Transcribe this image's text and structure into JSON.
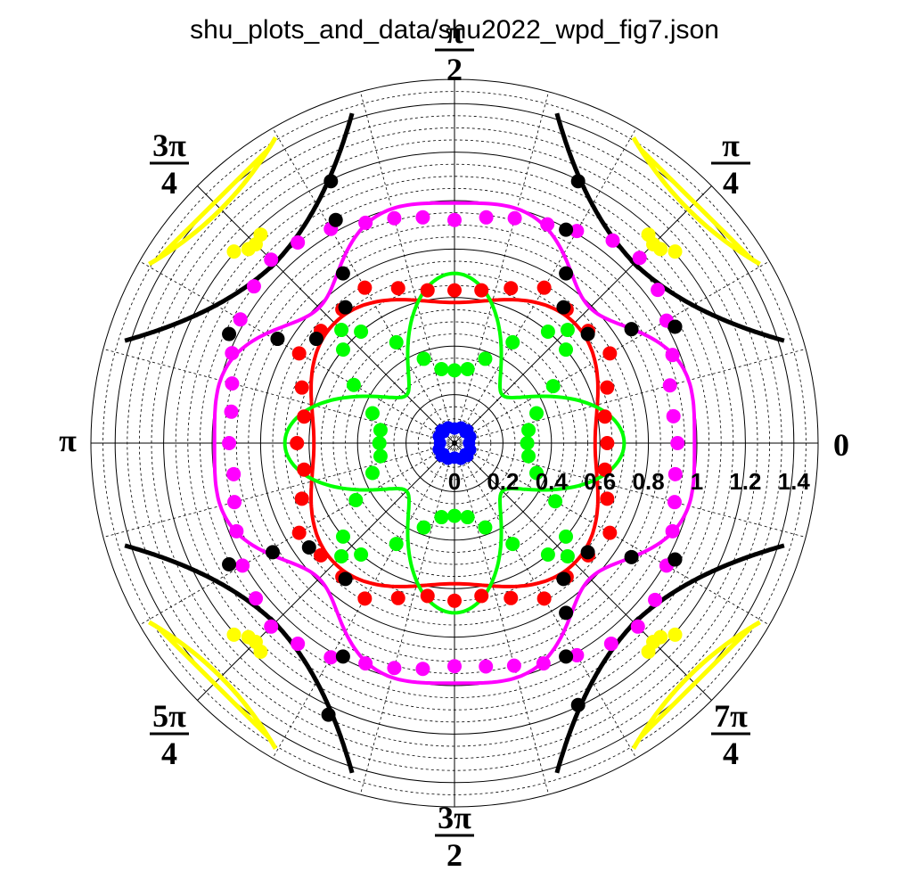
{
  "chart_data": {
    "type": "polar",
    "title": "shu_plots_and_data/shu2022_wpd_fig7.json",
    "r_range": [
      0,
      1.5
    ],
    "radial_ticks": [
      {
        "value": 0,
        "label": "0"
      },
      {
        "value": 0.2,
        "label": "0.2"
      },
      {
        "value": 0.4,
        "label": "0.4"
      },
      {
        "value": 0.6,
        "label": "0.6"
      },
      {
        "value": 0.8,
        "label": "0.8"
      },
      {
        "value": 1.0,
        "label": "1"
      },
      {
        "value": 1.2,
        "label": "1.2"
      },
      {
        "value": 1.4,
        "label": "1.4"
      }
    ],
    "angle_labels": [
      {
        "angle_deg": 0,
        "num": "0",
        "den": ""
      },
      {
        "angle_deg": 45,
        "num": "π",
        "den": "4"
      },
      {
        "angle_deg": 90,
        "num": "π",
        "den": "2"
      },
      {
        "angle_deg": 135,
        "num": "3π",
        "den": "4"
      },
      {
        "angle_deg": 180,
        "num": "π",
        "den": ""
      },
      {
        "angle_deg": 225,
        "num": "5π",
        "den": "4"
      },
      {
        "angle_deg": 270,
        "num": "3π",
        "den": "2"
      },
      {
        "angle_deg": 315,
        "num": "7π",
        "den": "4"
      }
    ],
    "grid": true,
    "series": [
      {
        "color": "#ff0000",
        "curve": {
          "form": "cos4",
          "a": 0.64,
          "b": -0.06
        },
        "points_polar": [
          [
            0,
            0.63
          ],
          [
            10,
            0.63
          ],
          [
            20,
            0.67
          ],
          [
            30,
            0.74
          ],
          [
            40,
            0.72
          ],
          [
            50,
            0.72
          ],
          [
            60,
            0.74
          ],
          [
            70,
            0.68
          ],
          [
            80,
            0.64
          ],
          [
            90,
            0.63
          ],
          [
            100,
            0.64
          ],
          [
            110,
            0.68
          ],
          [
            120,
            0.74
          ],
          [
            130,
            0.72
          ],
          [
            140,
            0.72
          ],
          [
            150,
            0.74
          ],
          [
            160,
            0.67
          ],
          [
            170,
            0.63
          ],
          [
            180,
            0.65
          ],
          [
            190,
            0.63
          ],
          [
            200,
            0.67
          ],
          [
            210,
            0.74
          ],
          [
            220,
            0.72
          ],
          [
            230,
            0.72
          ],
          [
            240,
            0.74
          ],
          [
            250,
            0.68
          ],
          [
            260,
            0.64
          ],
          [
            270,
            0.65
          ],
          [
            280,
            0.64
          ],
          [
            290,
            0.68
          ],
          [
            300,
            0.74
          ],
          [
            310,
            0.72
          ],
          [
            320,
            0.72
          ],
          [
            330,
            0.74
          ],
          [
            340,
            0.67
          ],
          [
            350,
            0.63
          ]
        ]
      },
      {
        "color": "#ff00ff",
        "curve": {
          "form": "cos8",
          "a": 0.93,
          "b": 0.1,
          "c": -0.04
        },
        "points_polar": [
          [
            0,
            0.92
          ],
          [
            7,
            0.91
          ],
          [
            15,
            0.92
          ],
          [
            22,
            0.97
          ],
          [
            30,
            1.01
          ],
          [
            37,
            1.05
          ],
          [
            45,
            1.08
          ],
          [
            52,
            1.06
          ],
          [
            60,
            1.01
          ],
          [
            67,
            0.98
          ],
          [
            75,
            0.96
          ],
          [
            82,
            0.94
          ],
          [
            90,
            0.92
          ],
          [
            98,
            0.94
          ],
          [
            105,
            0.96
          ],
          [
            112,
            0.98
          ],
          [
            120,
            1.02
          ],
          [
            128,
            1.05
          ],
          [
            135,
            1.07
          ],
          [
            142,
            1.05
          ],
          [
            150,
            1.02
          ],
          [
            158,
            0.99
          ],
          [
            165,
            0.95
          ],
          [
            172,
            0.93
          ],
          [
            180,
            0.93
          ],
          [
            188,
            0.92
          ],
          [
            195,
            0.94
          ],
          [
            202,
            0.97
          ],
          [
            210,
            1.01
          ],
          [
            218,
            1.04
          ],
          [
            225,
            1.07
          ],
          [
            232,
            1.05
          ],
          [
            240,
            1.02
          ],
          [
            248,
            0.98
          ],
          [
            255,
            0.96
          ],
          [
            262,
            0.94
          ],
          [
            270,
            0.92
          ],
          [
            278,
            0.93
          ],
          [
            285,
            0.95
          ],
          [
            292,
            0.98
          ],
          [
            300,
            1.01
          ],
          [
            308,
            1.05
          ],
          [
            315,
            1.07
          ],
          [
            322,
            1.05
          ],
          [
            330,
            1.01
          ],
          [
            338,
            0.97
          ],
          [
            345,
            0.94
          ],
          [
            352,
            0.92
          ]
        ]
      },
      {
        "color": "#00ff00",
        "curve": {
          "form": "cos4",
          "a": 0.49,
          "b": 0.21
        },
        "points_polar": [
          [
            0,
            0.3
          ],
          [
            10,
            0.31
          ],
          [
            20,
            0.36
          ],
          [
            30,
            0.47
          ],
          [
            40,
            0.6
          ],
          [
            45,
            0.66
          ],
          [
            50,
            0.6
          ],
          [
            60,
            0.48
          ],
          [
            70,
            0.37
          ],
          [
            80,
            0.31
          ],
          [
            90,
            0.3
          ],
          [
            100,
            0.31
          ],
          [
            110,
            0.37
          ],
          [
            120,
            0.48
          ],
          [
            130,
            0.6
          ],
          [
            135,
            0.66
          ],
          [
            140,
            0.6
          ],
          [
            150,
            0.48
          ],
          [
            160,
            0.36
          ],
          [
            170,
            0.31
          ],
          [
            180,
            0.31
          ],
          [
            190,
            0.31
          ],
          [
            200,
            0.36
          ],
          [
            210,
            0.47
          ],
          [
            220,
            0.6
          ],
          [
            225,
            0.66
          ],
          [
            230,
            0.6
          ],
          [
            240,
            0.48
          ],
          [
            250,
            0.37
          ],
          [
            260,
            0.31
          ],
          [
            270,
            0.3
          ],
          [
            280,
            0.31
          ],
          [
            290,
            0.37
          ],
          [
            300,
            0.48
          ],
          [
            310,
            0.6
          ],
          [
            315,
            0.66
          ],
          [
            320,
            0.6
          ],
          [
            330,
            0.48
          ],
          [
            340,
            0.36
          ],
          [
            350,
            0.31
          ]
        ]
      },
      {
        "color": "#0000ff",
        "curve": {
          "form": "cos8",
          "a": 0.06,
          "b": 0.015,
          "c": 0
        },
        "points_polar": [
          [
            0,
            0.06
          ],
          [
            22,
            0.07
          ],
          [
            45,
            0.075
          ],
          [
            67,
            0.07
          ],
          [
            90,
            0.06
          ],
          [
            112,
            0.07
          ],
          [
            135,
            0.075
          ],
          [
            157,
            0.07
          ],
          [
            180,
            0.06
          ],
          [
            202,
            0.07
          ],
          [
            225,
            0.075
          ],
          [
            247,
            0.07
          ],
          [
            270,
            0.06
          ],
          [
            292,
            0.07
          ],
          [
            315,
            0.075
          ],
          [
            337,
            0.07
          ]
        ]
      },
      {
        "color": "#000000",
        "curve": {
          "form": "hyperbola",
          "k": 0.52,
          "offset": 0.04,
          "umax": 1.36
        },
        "points_xy": [
          [
            0.51,
            1.08
          ],
          [
            0.46,
            0.88
          ],
          [
            0.46,
            0.7
          ],
          [
            0.45,
            0.56
          ],
          [
            0.55,
            0.45
          ],
          [
            0.73,
            0.47
          ],
          [
            0.91,
            0.48
          ],
          [
            0.51,
            -1.08
          ],
          [
            0.46,
            -0.88
          ],
          [
            0.46,
            -0.7
          ],
          [
            0.45,
            -0.56
          ],
          [
            0.55,
            -0.45
          ],
          [
            0.73,
            -0.47
          ],
          [
            0.91,
            -0.48
          ],
          [
            -0.51,
            1.08
          ],
          [
            -0.49,
            0.92
          ],
          [
            -0.46,
            0.7
          ],
          [
            -0.45,
            0.56
          ],
          [
            -0.57,
            0.43
          ],
          [
            -0.73,
            0.43
          ],
          [
            -0.93,
            0.45
          ],
          [
            -0.52,
            -1.12
          ],
          [
            -0.46,
            -0.88
          ],
          [
            -0.45,
            -0.56
          ],
          [
            -0.6,
            -0.43
          ],
          [
            -0.75,
            -0.45
          ],
          [
            -0.93,
            -0.5
          ]
        ]
      },
      {
        "color": "#ffff00",
        "curve": {
          "form": "hyperbola",
          "k": 0.93,
          "offset": 0,
          "umin": 0.76,
          "umax": 1.26
        },
        "points_xy": [
          [
            0.8,
            0.86
          ],
          [
            0.82,
            0.82
          ],
          [
            0.85,
            0.8
          ],
          [
            0.91,
            0.79
          ],
          [
            -0.8,
            0.86
          ],
          [
            -0.82,
            0.82
          ],
          [
            -0.85,
            0.8
          ],
          [
            -0.91,
            0.79
          ],
          [
            0.8,
            -0.86
          ],
          [
            0.82,
            -0.82
          ],
          [
            0.85,
            -0.8
          ],
          [
            0.91,
            -0.79
          ],
          [
            -0.8,
            -0.86
          ],
          [
            -0.82,
            -0.82
          ],
          [
            -0.85,
            -0.8
          ],
          [
            -0.91,
            -0.79
          ]
        ]
      }
    ]
  }
}
